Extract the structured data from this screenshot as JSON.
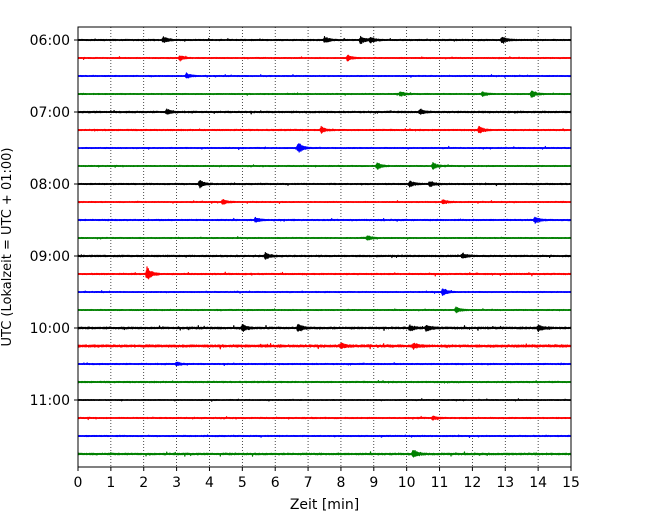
{
  "chart_data": {
    "type": "line",
    "xlabel": "Zeit  [min]",
    "ylabel": "UTC (Lokalzeit = UTC + 01:00)",
    "xlim": [
      0,
      15
    ],
    "x_ticks": [
      "0",
      "1",
      "2",
      "3",
      "4",
      "5",
      "6",
      "7",
      "8",
      "9",
      "10",
      "11",
      "12",
      "13",
      "14",
      "15"
    ],
    "y_ticks": [
      "06:00",
      "07:00",
      "08:00",
      "09:00",
      "10:00",
      "11:00"
    ],
    "grid": true,
    "series_colors": [
      "#000000",
      "#ff0000",
      "#0000ff",
      "#008000"
    ],
    "trace_start_times": [
      "06:00",
      "06:15",
      "06:30",
      "06:45",
      "07:00",
      "07:15",
      "07:30",
      "07:45",
      "08:00",
      "08:15",
      "08:30",
      "08:45",
      "09:00",
      "09:15",
      "09:30",
      "09:45",
      "10:00",
      "10:15",
      "10:30",
      "10:45",
      "11:00",
      "11:15",
      "11:30",
      "11:45"
    ],
    "noise_level": [
      0.15,
      0.12,
      0.12,
      0.12,
      0.18,
      0.15,
      0.12,
      0.12,
      0.15,
      0.12,
      0.15,
      0.12,
      0.18,
      0.15,
      0.12,
      0.12,
      0.22,
      0.28,
      0.14,
      0.16,
      0.1,
      0.14,
      0.14,
      0.2
    ],
    "events": [
      {
        "trace": 0,
        "t": 2.6,
        "a": 1.0
      },
      {
        "trace": 0,
        "t": 7.5,
        "a": 1.0
      },
      {
        "trace": 0,
        "t": 8.6,
        "a": 1.2
      },
      {
        "trace": 0,
        "t": 8.9,
        "a": 0.9
      },
      {
        "trace": 0,
        "t": 12.9,
        "a": 1.0
      },
      {
        "trace": 1,
        "t": 3.1,
        "a": 0.8
      },
      {
        "trace": 1,
        "t": 8.2,
        "a": 0.9
      },
      {
        "trace": 2,
        "t": 3.3,
        "a": 0.8
      },
      {
        "trace": 3,
        "t": 9.8,
        "a": 0.9
      },
      {
        "trace": 3,
        "t": 12.3,
        "a": 0.8
      },
      {
        "trace": 3,
        "t": 13.8,
        "a": 1.3
      },
      {
        "trace": 4,
        "t": 2.7,
        "a": 0.8
      },
      {
        "trace": 4,
        "t": 10.4,
        "a": 0.8
      },
      {
        "trace": 5,
        "t": 7.4,
        "a": 1.0
      },
      {
        "trace": 5,
        "t": 12.2,
        "a": 1.2
      },
      {
        "trace": 6,
        "t": 6.7,
        "a": 1.8
      },
      {
        "trace": 7,
        "t": 9.1,
        "a": 1.1
      },
      {
        "trace": 7,
        "t": 10.8,
        "a": 1.0
      },
      {
        "trace": 8,
        "t": 3.7,
        "a": 1.2
      },
      {
        "trace": 8,
        "t": 10.1,
        "a": 0.9
      },
      {
        "trace": 8,
        "t": 10.7,
        "a": 0.9
      },
      {
        "trace": 9,
        "t": 4.4,
        "a": 0.8
      },
      {
        "trace": 9,
        "t": 11.1,
        "a": 0.7
      },
      {
        "trace": 10,
        "t": 5.4,
        "a": 0.7
      },
      {
        "trace": 10,
        "t": 13.9,
        "a": 1.0
      },
      {
        "trace": 11,
        "t": 8.8,
        "a": 0.8
      },
      {
        "trace": 12,
        "t": 5.7,
        "a": 0.9
      },
      {
        "trace": 12,
        "t": 11.7,
        "a": 0.8
      },
      {
        "trace": 13,
        "t": 2.1,
        "a": 2.3
      },
      {
        "trace": 14,
        "t": 11.1,
        "a": 1.2
      },
      {
        "trace": 15,
        "t": 11.5,
        "a": 0.9
      },
      {
        "trace": 16,
        "t": 5.0,
        "a": 1.0
      },
      {
        "trace": 16,
        "t": 6.7,
        "a": 1.3
      },
      {
        "trace": 16,
        "t": 10.1,
        "a": 0.9
      },
      {
        "trace": 16,
        "t": 10.6,
        "a": 1.0
      },
      {
        "trace": 16,
        "t": 14.0,
        "a": 0.9
      },
      {
        "trace": 17,
        "t": 8.0,
        "a": 0.8
      },
      {
        "trace": 17,
        "t": 10.2,
        "a": 0.8
      },
      {
        "trace": 18,
        "t": 3.0,
        "a": 0.6
      },
      {
        "trace": 21,
        "t": 10.8,
        "a": 0.6
      },
      {
        "trace": 23,
        "t": 10.2,
        "a": 1.3
      }
    ]
  }
}
